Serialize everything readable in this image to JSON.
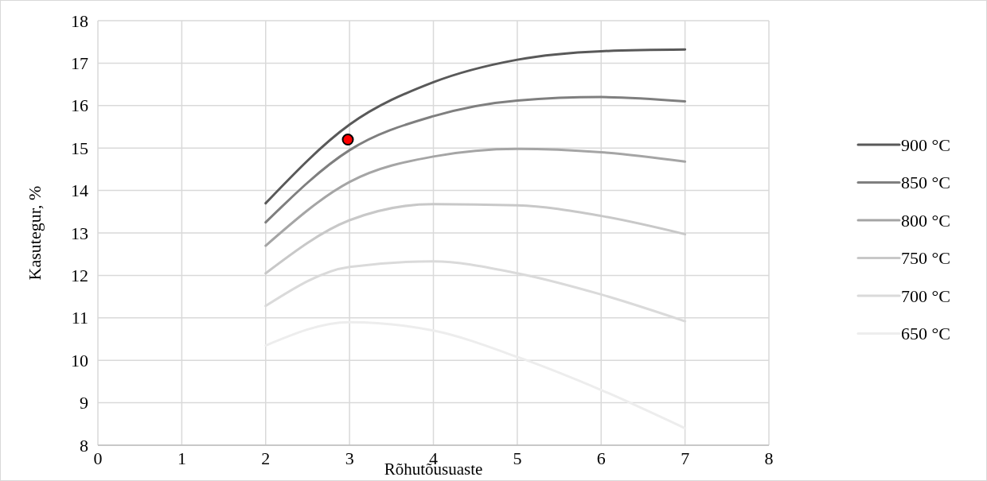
{
  "chart_data": {
    "type": "line",
    "xlabel": "Rõhutõusuaste",
    "ylabel": "Kasutegur, %",
    "xlim": [
      0,
      8
    ],
    "xticks": [
      0,
      1,
      2,
      3,
      4,
      5,
      6,
      7,
      8
    ],
    "ylim": [
      8,
      18
    ],
    "yticks": [
      8,
      9,
      10,
      11,
      12,
      13,
      14,
      15,
      16,
      17,
      18
    ],
    "grid": true,
    "legend": "right",
    "x": [
      2,
      3,
      4,
      5,
      6,
      7
    ],
    "series": [
      {
        "name": "900 °C",
        "color": "#595959",
        "values": [
          13.7,
          15.55,
          16.55,
          17.08,
          17.28,
          17.32
        ]
      },
      {
        "name": "850 °C",
        "color": "#7f7f7f",
        "values": [
          13.25,
          14.95,
          15.75,
          16.12,
          16.2,
          16.1
        ]
      },
      {
        "name": "800 °C",
        "color": "#a5a5a5",
        "values": [
          12.7,
          14.2,
          14.8,
          14.98,
          14.9,
          14.68
        ]
      },
      {
        "name": "750 °C",
        "color": "#c8c8c8",
        "values": [
          12.05,
          13.3,
          13.68,
          13.65,
          13.4,
          12.97
        ]
      },
      {
        "name": "700 °C",
        "color": "#dadada",
        "values": [
          11.28,
          12.2,
          12.33,
          12.05,
          11.55,
          10.92
        ]
      },
      {
        "name": "650 °C",
        "color": "#ededed",
        "values": [
          10.35,
          10.9,
          10.7,
          10.08,
          9.3,
          8.4
        ]
      },
      {
        "type": "scatter",
        "marker": "circle",
        "color": "#ff0000",
        "x": [
          2.98
        ],
        "values": [
          15.2
        ]
      }
    ]
  }
}
